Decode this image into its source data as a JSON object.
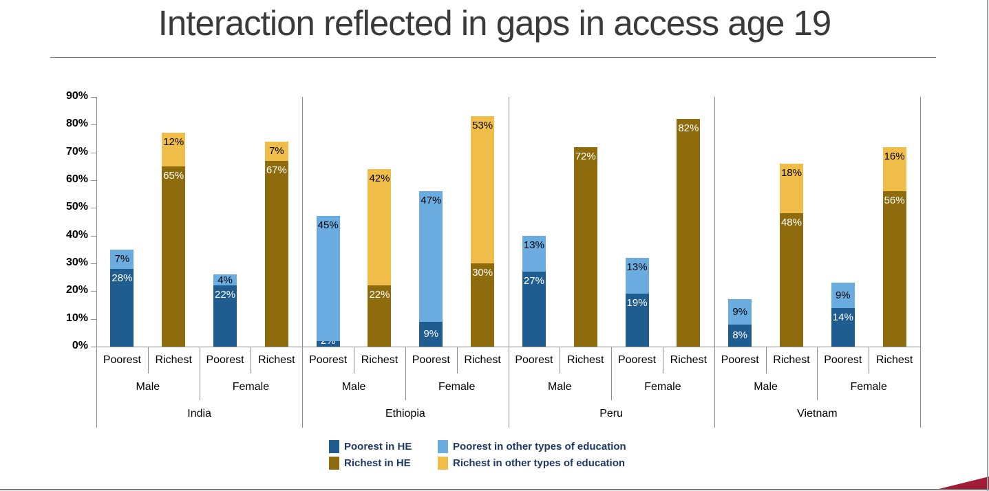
{
  "title": "Interaction reflected in gaps in access age 19",
  "chart_data": {
    "type": "bar",
    "stacked": true,
    "title": "Interaction reflected in gaps in access age 19",
    "ylim": [
      0,
      90
    ],
    "ytick_labels": [
      "0%",
      "10%",
      "20%",
      "30%",
      "40%",
      "50%",
      "60%",
      "70%",
      "80%",
      "90%"
    ],
    "grid": false,
    "legend_position": "bottom",
    "value_label_format": "percent",
    "series": [
      {
        "name": "Poorest in HE",
        "color": "#1F5C8F",
        "label_text_color": "#FFFFFF"
      },
      {
        "name": "Poorest in other types of education",
        "color": "#6BACE0",
        "label_text_color": "#000000"
      },
      {
        "name": "Richest in HE",
        "color": "#8E6C0D",
        "label_text_color": "#FFFFFF"
      },
      {
        "name": "Richest in other types of education",
        "color": "#F0BE48",
        "label_text_color": "#000000"
      }
    ],
    "countries": [
      {
        "name": "India",
        "genders": [
          {
            "name": "Male",
            "bars": [
              {
                "label": "Poorest",
                "segments": [
                  {
                    "series": 0,
                    "value": 28
                  },
                  {
                    "series": 1,
                    "value": 7
                  }
                ]
              },
              {
                "label": "Richest",
                "segments": [
                  {
                    "series": 2,
                    "value": 65
                  },
                  {
                    "series": 3,
                    "value": 12
                  }
                ]
              }
            ]
          },
          {
            "name": "Female",
            "bars": [
              {
                "label": "Poorest",
                "segments": [
                  {
                    "series": 0,
                    "value": 22
                  },
                  {
                    "series": 1,
                    "value": 4
                  }
                ]
              },
              {
                "label": "Richest",
                "segments": [
                  {
                    "series": 2,
                    "value": 67
                  },
                  {
                    "series": 3,
                    "value": 7
                  }
                ]
              }
            ]
          }
        ]
      },
      {
        "name": "Ethiopia",
        "genders": [
          {
            "name": "Male",
            "bars": [
              {
                "label": "Poorest",
                "segments": [
                  {
                    "series": 0,
                    "value": 2
                  },
                  {
                    "series": 1,
                    "value": 45
                  }
                ]
              },
              {
                "label": "Richest",
                "segments": [
                  {
                    "series": 2,
                    "value": 22
                  },
                  {
                    "series": 3,
                    "value": 42
                  }
                ]
              }
            ]
          },
          {
            "name": "Female",
            "bars": [
              {
                "label": "Poorest",
                "segments": [
                  {
                    "series": 0,
                    "value": 9
                  },
                  {
                    "series": 1,
                    "value": 47
                  }
                ]
              },
              {
                "label": "Richest",
                "segments": [
                  {
                    "series": 2,
                    "value": 30
                  },
                  {
                    "series": 3,
                    "value": 53
                  }
                ]
              }
            ]
          }
        ]
      },
      {
        "name": "Peru",
        "genders": [
          {
            "name": "Male",
            "bars": [
              {
                "label": "Poorest",
                "segments": [
                  {
                    "series": 0,
                    "value": 27
                  },
                  {
                    "series": 1,
                    "value": 13
                  }
                ]
              },
              {
                "label": "Richest",
                "segments": [
                  {
                    "series": 2,
                    "value": 72
                  }
                ]
              }
            ]
          },
          {
            "name": "Female",
            "bars": [
              {
                "label": "Poorest",
                "segments": [
                  {
                    "series": 0,
                    "value": 19
                  },
                  {
                    "series": 1,
                    "value": 13
                  }
                ]
              },
              {
                "label": "Richest",
                "segments": [
                  {
                    "series": 2,
                    "value": 82
                  }
                ]
              }
            ]
          }
        ]
      },
      {
        "name": "Vietnam",
        "genders": [
          {
            "name": "Male",
            "bars": [
              {
                "label": "Poorest",
                "segments": [
                  {
                    "series": 0,
                    "value": 8
                  },
                  {
                    "series": 1,
                    "value": 9
                  }
                ]
              },
              {
                "label": "Richest",
                "segments": [
                  {
                    "series": 2,
                    "value": 48
                  },
                  {
                    "series": 3,
                    "value": 18
                  }
                ]
              }
            ]
          },
          {
            "name": "Female",
            "bars": [
              {
                "label": "Poorest",
                "segments": [
                  {
                    "series": 0,
                    "value": 14
                  },
                  {
                    "series": 1,
                    "value": 9
                  }
                ]
              },
              {
                "label": "Richest",
                "segments": [
                  {
                    "series": 2,
                    "value": 56
                  },
                  {
                    "series": 3,
                    "value": 16
                  }
                ]
              }
            ]
          }
        ]
      }
    ]
  },
  "decor": {
    "accent_red": "#A11C35",
    "axis_line_color": "#8C8C8C",
    "legend_text_color": "#1F3864",
    "title_color": "#3A3A3A"
  }
}
